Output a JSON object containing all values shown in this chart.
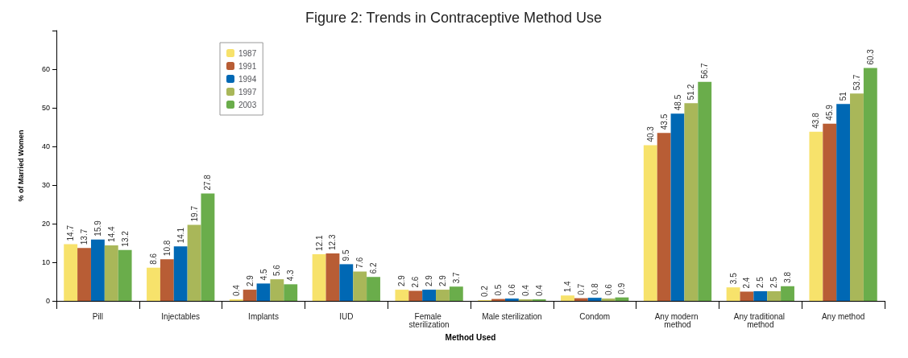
{
  "chart_data": {
    "type": "bar",
    "title": "Figure 2: Trends in Contraceptive Method Use",
    "xlabel": "Method Used",
    "ylabel": "% of Married Women",
    "categories": [
      "Pill",
      "Injectables",
      "Implants",
      "IUD",
      "Female sterilization",
      "Male sterilization",
      "Condom",
      "Any modern method",
      "Any traditional method",
      "Any method"
    ],
    "series": [
      {
        "name": "1987",
        "color": "#f7e26b",
        "values": [
          14.7,
          8.6,
          0.4,
          12.1,
          2.9,
          0.2,
          1.4,
          40.3,
          3.5,
          43.8
        ]
      },
      {
        "name": "1991",
        "color": "#b85d35",
        "values": [
          13.7,
          10.8,
          2.9,
          12.3,
          2.6,
          0.5,
          0.7,
          43.5,
          2.4,
          45.9
        ]
      },
      {
        "name": "1994",
        "color": "#0068b4",
        "values": [
          15.9,
          14.1,
          4.5,
          9.5,
          2.9,
          0.6,
          0.8,
          48.5,
          2.5,
          51
        ]
      },
      {
        "name": "1997",
        "color": "#a9b759",
        "values": [
          14.4,
          19.7,
          5.6,
          7.6,
          2.9,
          0.4,
          0.6,
          51.2,
          2.5,
          53.7
        ]
      },
      {
        "name": "2003",
        "color": "#6aad4b",
        "values": [
          13.2,
          27.8,
          4.3,
          6.2,
          3.7,
          0.4,
          0.9,
          56.7,
          3.8,
          60.3
        ]
      }
    ],
    "ylim": [
      0,
      70
    ],
    "yticks": [
      0,
      10,
      20,
      30,
      40,
      50,
      60,
      {
        "value": 70,
        "label": null
      }
    ],
    "data_labels": true,
    "legend": "top left",
    "grid": false
  }
}
